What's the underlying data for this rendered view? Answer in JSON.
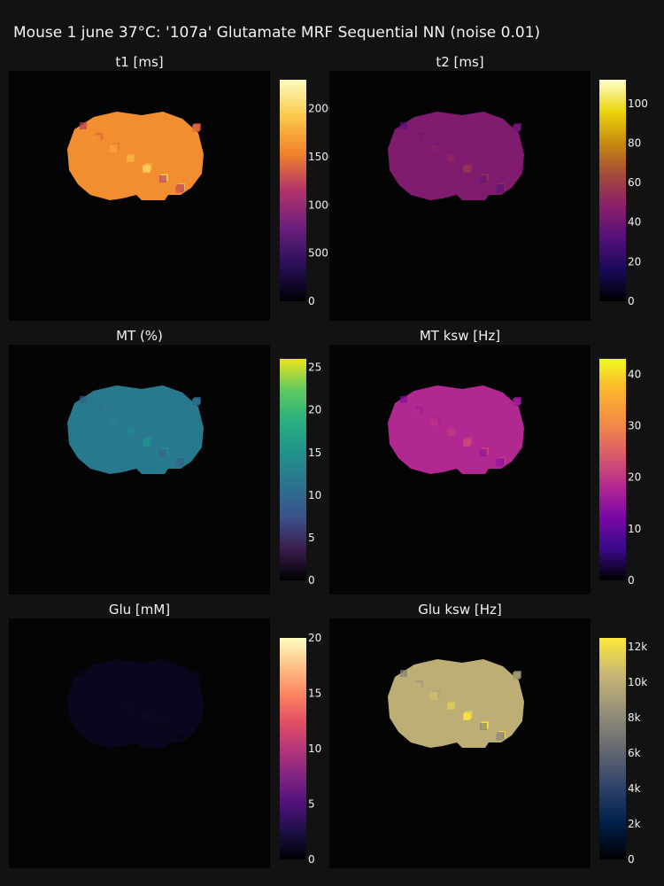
{
  "chart_data": {
    "type": "heatmap",
    "title": "Mouse 1 june 37°C: '107a' Glutamate MRF Sequential NN (noise 0.01)",
    "panels": [
      {
        "title": "t1 [ms]",
        "colormap": "plasma-hot",
        "colors": [
          "#000004",
          "#2a0f5a",
          "#6c1f7e",
          "#b3336b",
          "#f0822a",
          "#fbc74a",
          "#fcfdbf"
        ],
        "colorbar_range": [
          0,
          2300
        ],
        "colorbar_ticks": [
          0,
          500,
          1000,
          1500,
          2000
        ],
        "colorbar_ticklabels": [
          "0",
          "500",
          "1000",
          "1500",
          "2000"
        ],
        "typical_value": 1600
      },
      {
        "title": "t2 [ms]",
        "colormap": "cmr-thermal",
        "colors": [
          "#000000",
          "#1a0a5a",
          "#55107a",
          "#8a1f6a",
          "#a44a3a",
          "#c88a10",
          "#ecd50a",
          "#ffffd0"
        ],
        "colorbar_range": [
          0,
          112
        ],
        "colorbar_ticks": [
          0,
          20,
          40,
          60,
          80,
          100
        ],
        "colorbar_ticklabels": [
          "0",
          "20",
          "40",
          "60",
          "80",
          "100"
        ],
        "typical_value": 45
      },
      {
        "title": "MT (%)",
        "colormap": "viridis",
        "colors": [
          "#000000",
          "#3b1d4f",
          "#3b528b",
          "#2c728e",
          "#21918c",
          "#28ae80",
          "#5ec962",
          "#e8e419"
        ],
        "colorbar_range": [
          0,
          26
        ],
        "colorbar_ticks": [
          0,
          5,
          10,
          15,
          20,
          25
        ],
        "colorbar_ticklabels": [
          "0",
          "5",
          "10",
          "15",
          "20",
          "25"
        ],
        "typical_value": 12
      },
      {
        "title": "MT ksw [Hz]",
        "colormap": "plasma",
        "colors": [
          "#000000",
          "#3a0a8c",
          "#7a08a6",
          "#b62a8f",
          "#db5c68",
          "#f48c45",
          "#fdb32f",
          "#f0f921"
        ],
        "colorbar_range": [
          0,
          43
        ],
        "colorbar_ticks": [
          0,
          10,
          20,
          30,
          40
        ],
        "colorbar_ticklabels": [
          "0",
          "10",
          "20",
          "30",
          "40"
        ],
        "typical_value": 18
      },
      {
        "title": "Glu [mM]",
        "colormap": "magma",
        "colors": [
          "#000004",
          "#1c1044",
          "#4f127b",
          "#812581",
          "#b5367a",
          "#e55064",
          "#fb8761",
          "#fec287",
          "#fcfdbf"
        ],
        "colorbar_range": [
          0,
          20
        ],
        "colorbar_ticks": [
          0,
          5,
          10,
          15,
          20
        ],
        "colorbar_ticklabels": [
          "0",
          "5",
          "10",
          "15",
          "20"
        ],
        "typical_value": 1
      },
      {
        "title": "Glu ksw [Hz]",
        "colormap": "cividis",
        "colors": [
          "#000000",
          "#00204c",
          "#31446b",
          "#666970",
          "#958f78",
          "#c7b675",
          "#fee838"
        ],
        "colorbar_range": [
          0,
          12500
        ],
        "colorbar_ticks": [
          0,
          2000,
          4000,
          6000,
          8000,
          10000,
          12000
        ],
        "colorbar_ticklabels": [
          "0",
          "2k",
          "4k",
          "6k",
          "8k",
          "10k",
          "12k"
        ],
        "typical_value": 10000
      }
    ],
    "background": "#121212",
    "plot_background": "#040404"
  }
}
